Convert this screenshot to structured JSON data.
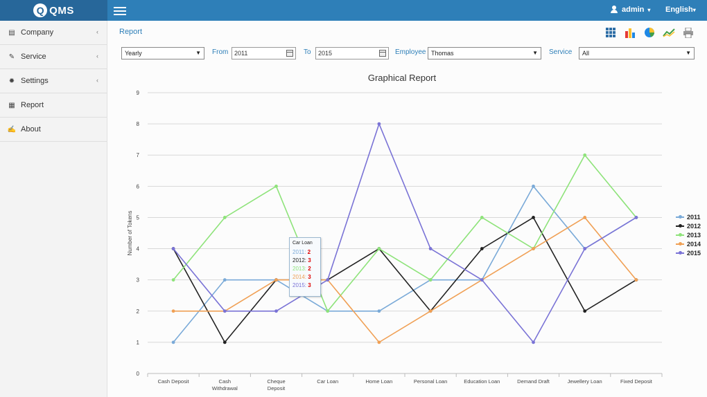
{
  "header": {
    "logo_text": "QMS",
    "user": "admin",
    "language": "English"
  },
  "sidebar": {
    "items": [
      {
        "label": "Company",
        "icon": "building-icon",
        "has_children": true
      },
      {
        "label": "Service",
        "icon": "wrench-icon",
        "has_children": true
      },
      {
        "label": "Settings",
        "icon": "gear-icon",
        "has_children": true
      },
      {
        "label": "Report",
        "icon": "document-icon",
        "has_children": false
      },
      {
        "label": "About",
        "icon": "edit-icon",
        "has_children": false
      }
    ]
  },
  "breadcrumb": "Report",
  "toolbar_icons": [
    "grid-icon",
    "bar-chart-icon",
    "pie-chart-icon",
    "line-chart-icon",
    "print-icon"
  ],
  "filters": {
    "period": "Yearly",
    "from_label": "From",
    "from_value": "2011",
    "to_label": "To",
    "to_value": "2015",
    "employee_label": "Employee",
    "employee_value": "Thomas",
    "service_label": "Service",
    "service_value": "All"
  },
  "tooltip": {
    "title": "Car Loan",
    "rows": [
      {
        "label": "2011:",
        "value": "2",
        "color": "#7aaad8"
      },
      {
        "label": "2012:",
        "value": "3",
        "color": "#222222"
      },
      {
        "label": "2013:",
        "value": "2",
        "color": "#8ee37a"
      },
      {
        "label": "2014:",
        "value": "3",
        "color": "#f0a055"
      },
      {
        "label": "2015:",
        "value": "3",
        "color": "#7a73d6"
      }
    ]
  },
  "chart_data": {
    "type": "line",
    "title": "Graphical Report",
    "ylabel": "Number of Tokens",
    "xlabel": "",
    "ylim": [
      0,
      9
    ],
    "yticks": [
      "0",
      "1",
      "2",
      "3",
      "4",
      "5",
      "6",
      "7",
      "8",
      "9"
    ],
    "grid": true,
    "legend_position": "right",
    "categories": [
      "Cash Deposit",
      "Cash Withdrawal",
      "Cheque Deposit",
      "Car Loan",
      "Home Loan",
      "Personal Loan",
      "Education Loan",
      "Demand Draft",
      "Jewellery Loan",
      "Fixed Deposit"
    ],
    "series": [
      {
        "name": "2011",
        "color": "#7aaad8",
        "values": [
          1,
          3,
          3,
          2,
          2,
          3,
          3,
          6,
          4,
          5
        ]
      },
      {
        "name": "2012",
        "color": "#222222",
        "values": [
          4,
          1,
          3,
          3,
          4,
          2,
          4,
          5,
          2,
          3
        ]
      },
      {
        "name": "2013",
        "color": "#8ee37a",
        "values": [
          3,
          5,
          6,
          2,
          4,
          3,
          5,
          4,
          7,
          5
        ]
      },
      {
        "name": "2014",
        "color": "#f0a055",
        "values": [
          2,
          2,
          3,
          3,
          1,
          2,
          3,
          4,
          5,
          3
        ]
      },
      {
        "name": "2015",
        "color": "#7a73d6",
        "values": [
          4,
          2,
          2,
          3,
          8,
          4,
          3,
          1,
          4,
          5
        ]
      }
    ]
  }
}
